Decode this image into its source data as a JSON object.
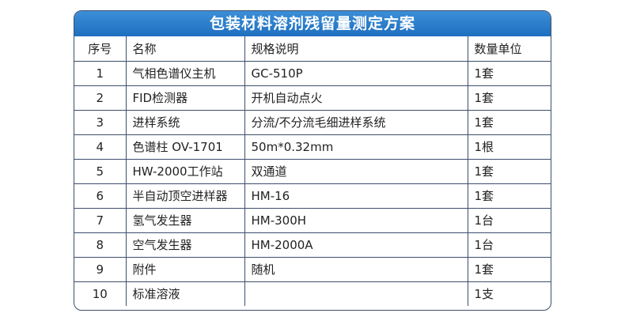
{
  "title": "包装材料溶剂残留量测定方案",
  "headers": [
    "序号",
    "名称",
    "规格说明",
    "数量单位"
  ],
  "rows": [
    [
      "1",
      "气相色谱仪主机",
      "GC-510P",
      "1套"
    ],
    [
      "2",
      "FID检测器",
      "开机自动点火",
      "1套"
    ],
    [
      "3",
      "进样系统",
      "分流/不分流毛细进样系统",
      "1套"
    ],
    [
      "4",
      "色谱柱 OV-1701",
      "50m*0.32mm",
      "1根"
    ],
    [
      "5",
      "HW-2000工作站",
      "双通道",
      "1套"
    ],
    [
      "6",
      "半自动顶空进样器",
      "HM-16",
      "1套"
    ],
    [
      "7",
      "氢气发生器",
      "HM-300H",
      "1台"
    ],
    [
      "8",
      "空气发生器",
      "HM-2000A",
      "1台"
    ],
    [
      "9",
      "附件",
      "随机",
      "1套"
    ],
    [
      "10",
      "标准溶液",
      "",
      "1支"
    ]
  ],
  "colors": {
    "header": "#1f6fc0",
    "border": "#3d4e6e"
  }
}
